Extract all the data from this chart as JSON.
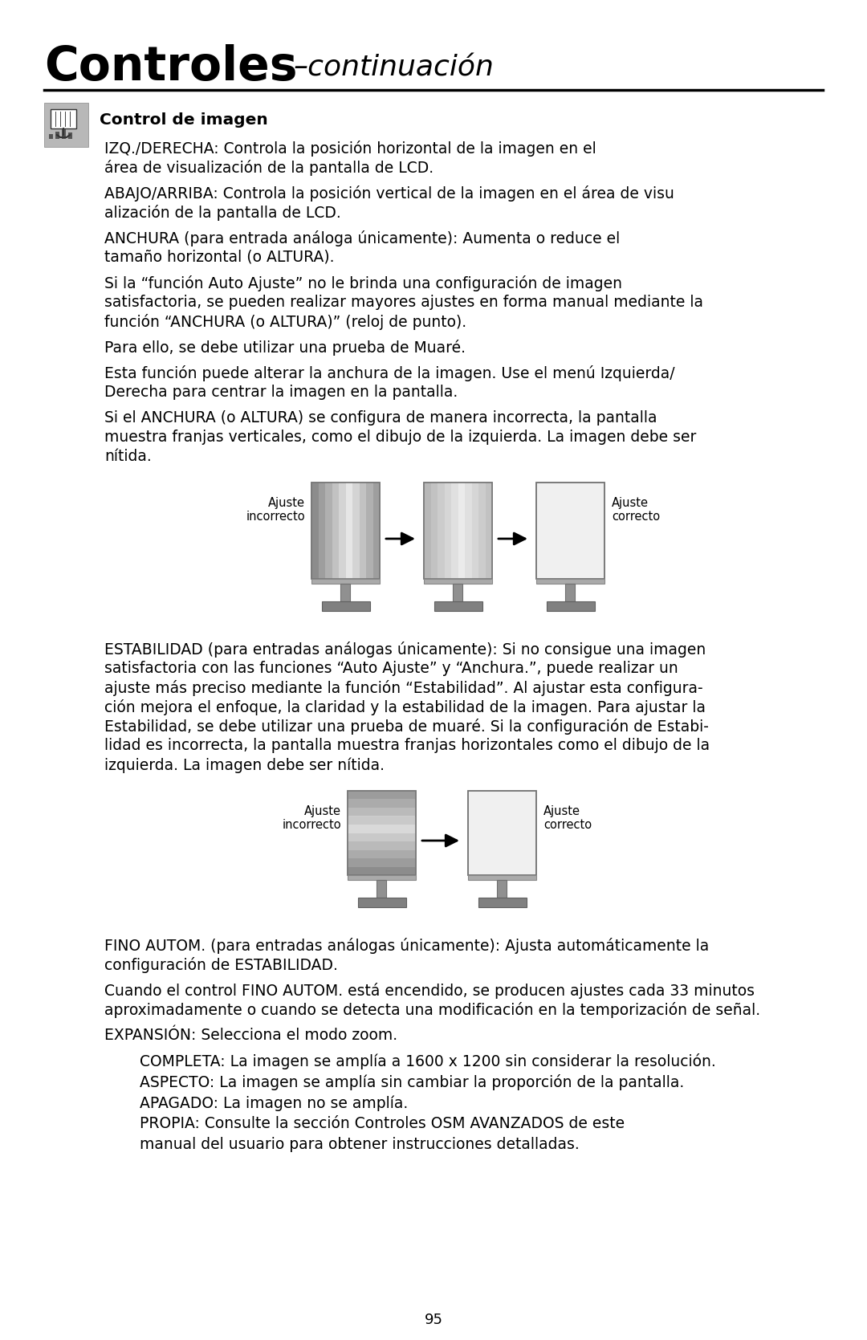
{
  "bg_color": "#ffffff",
  "title_bold": "Controles",
  "title_italic": "–continuación",
  "title_fontsize": 42,
  "title_italic_fontsize": 26,
  "body_fontsize": 13.5,
  "small_fontsize": 10.5,
  "page_number": "95",
  "section_title": "Control de imagen",
  "paragraphs": [
    "IZQ./DERECHA: Controla la posición horizontal de la imagen en el\nárea de visualización de la pantalla de LCD.",
    "ABAJO/ARRIBA: Controla la posición vertical de la imagen en el área de visu\nalización de la pantalla de LCD.",
    "ANCHURA (para entrada análoga únicamente): Aumenta o reduce el\ntamaño horizontal (o ALTURA).",
    "Si la “función Auto Ajuste” no le brinda una configuración de imagen\nsatisfactoria, se pueden realizar mayores ajustes en forma manual mediante la\nfunción “ANCHURA (o ALTURA)” (reloj de punto).",
    "Para ello, se debe utilizar una prueba de Muaré.",
    "Esta función puede alterar la anchura de la imagen. Use el menú Izquierda/\nDerecha para centrar la imagen en la pantalla.",
    "Si el ANCHURA (o ALTURA) se configura de manera incorrecta, la pantalla\nmuestra franjas verticales, como el dibujo de la izquierda. La imagen debe ser\nnítida.",
    "ESTABILIDAD (para entradas análogas únicamente): Si no consigue una imagen\nsatisfactoria con las funciones “Auto Ajuste” y “Anchura.”, puede realizar un\najuste más preciso mediante la función “Estabilidad”. Al ajustar esta configura-\nción mejora el enfoque, la claridad y la estabilidad de la imagen. Para ajustar la\nEstabilidad, se debe utilizar una prueba de muaré. Si la configuración de Estabi-\nlidad es incorrecta, la pantalla muestra franjas horizontales como el dibujo de la\nizquierda. La imagen debe ser nítida.",
    "FINO AUTOM. (para entradas análogas únicamente): Ajusta automáticamente la\nconfiguración de ESTABILIDAD.",
    "Cuando el control FINO AUTOM. está encendido, se producen ajustes cada 33 minutos\naproximadamente o cuando se detecta una modificación en la temporización de señal.",
    "EXPANSIÓN: Selecciona el modo zoom."
  ],
  "expansion_items": [
    "    COMPLETA: La imagen se amplía a 1600 x 1200 sin considerar la resolución.",
    "    ASPECTO: La imagen se amplía sin cambiar la proporción de la pantalla.",
    "    APAGADO: La imagen no se amplía.",
    "    PROPIA: Consulte la sección Controles OSM AVANZADOS de este",
    "    manual del usuario para obtener instrucciones detalladas."
  ]
}
